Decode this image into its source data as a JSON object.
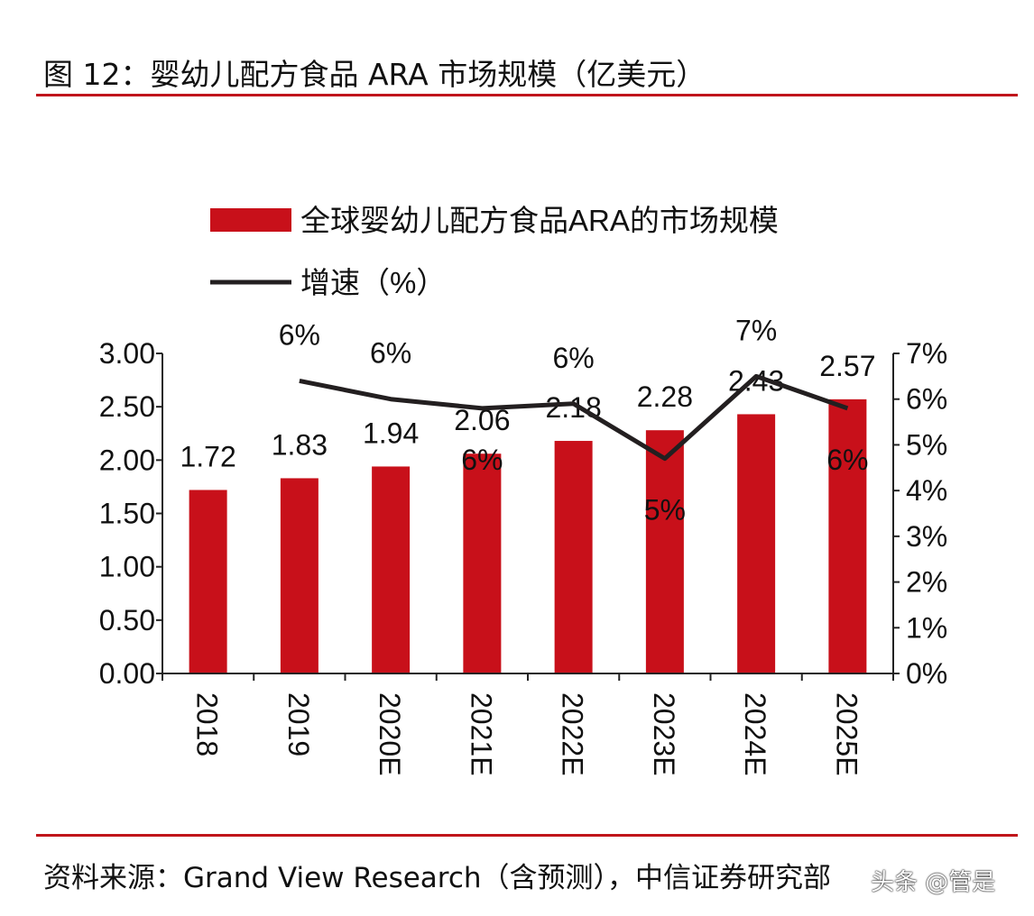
{
  "header": {
    "title": "图 12：婴幼儿配方食品 ARA 市场规模（亿美元）"
  },
  "footer": {
    "source": "资料来源：Grand View Research（含预测），中信证券研究部",
    "watermark": "头条 @管是"
  },
  "chart_data": {
    "type": "bar+line",
    "categories": [
      "2018",
      "2019",
      "2020E",
      "2021E",
      "2022E",
      "2023E",
      "2024E",
      "2025E"
    ],
    "series": [
      {
        "name": "全球婴幼儿配方食品ARA的市场规模",
        "type": "bar",
        "axis": "left",
        "color": "#c8101a",
        "values": [
          1.72,
          1.83,
          1.94,
          2.06,
          2.18,
          2.28,
          2.43,
          2.57
        ],
        "labels": [
          "1.72",
          "1.83",
          "1.94",
          "2.06",
          "2.18",
          "2.28",
          "2.43",
          "2.57"
        ]
      },
      {
        "name": "增速（%）",
        "type": "line",
        "axis": "right",
        "color": "#231f20",
        "values": [
          null,
          6.4,
          6.0,
          5.8,
          5.9,
          4.7,
          6.5,
          5.8
        ],
        "labels": [
          null,
          "6%",
          "6%",
          "6%",
          "6%",
          "5%",
          "7%",
          "6%"
        ]
      }
    ],
    "left_axis": {
      "range": [
        0,
        3
      ],
      "ticks": [
        "0.00",
        "0.50",
        "1.00",
        "1.50",
        "2.00",
        "2.50",
        "3.00"
      ]
    },
    "right_axis": {
      "range": [
        0,
        7
      ],
      "ticks": [
        "0%",
        "1%",
        "2%",
        "3%",
        "4%",
        "5%",
        "6%",
        "7%"
      ]
    },
    "legend_placement": "top-center",
    "grid": false
  }
}
